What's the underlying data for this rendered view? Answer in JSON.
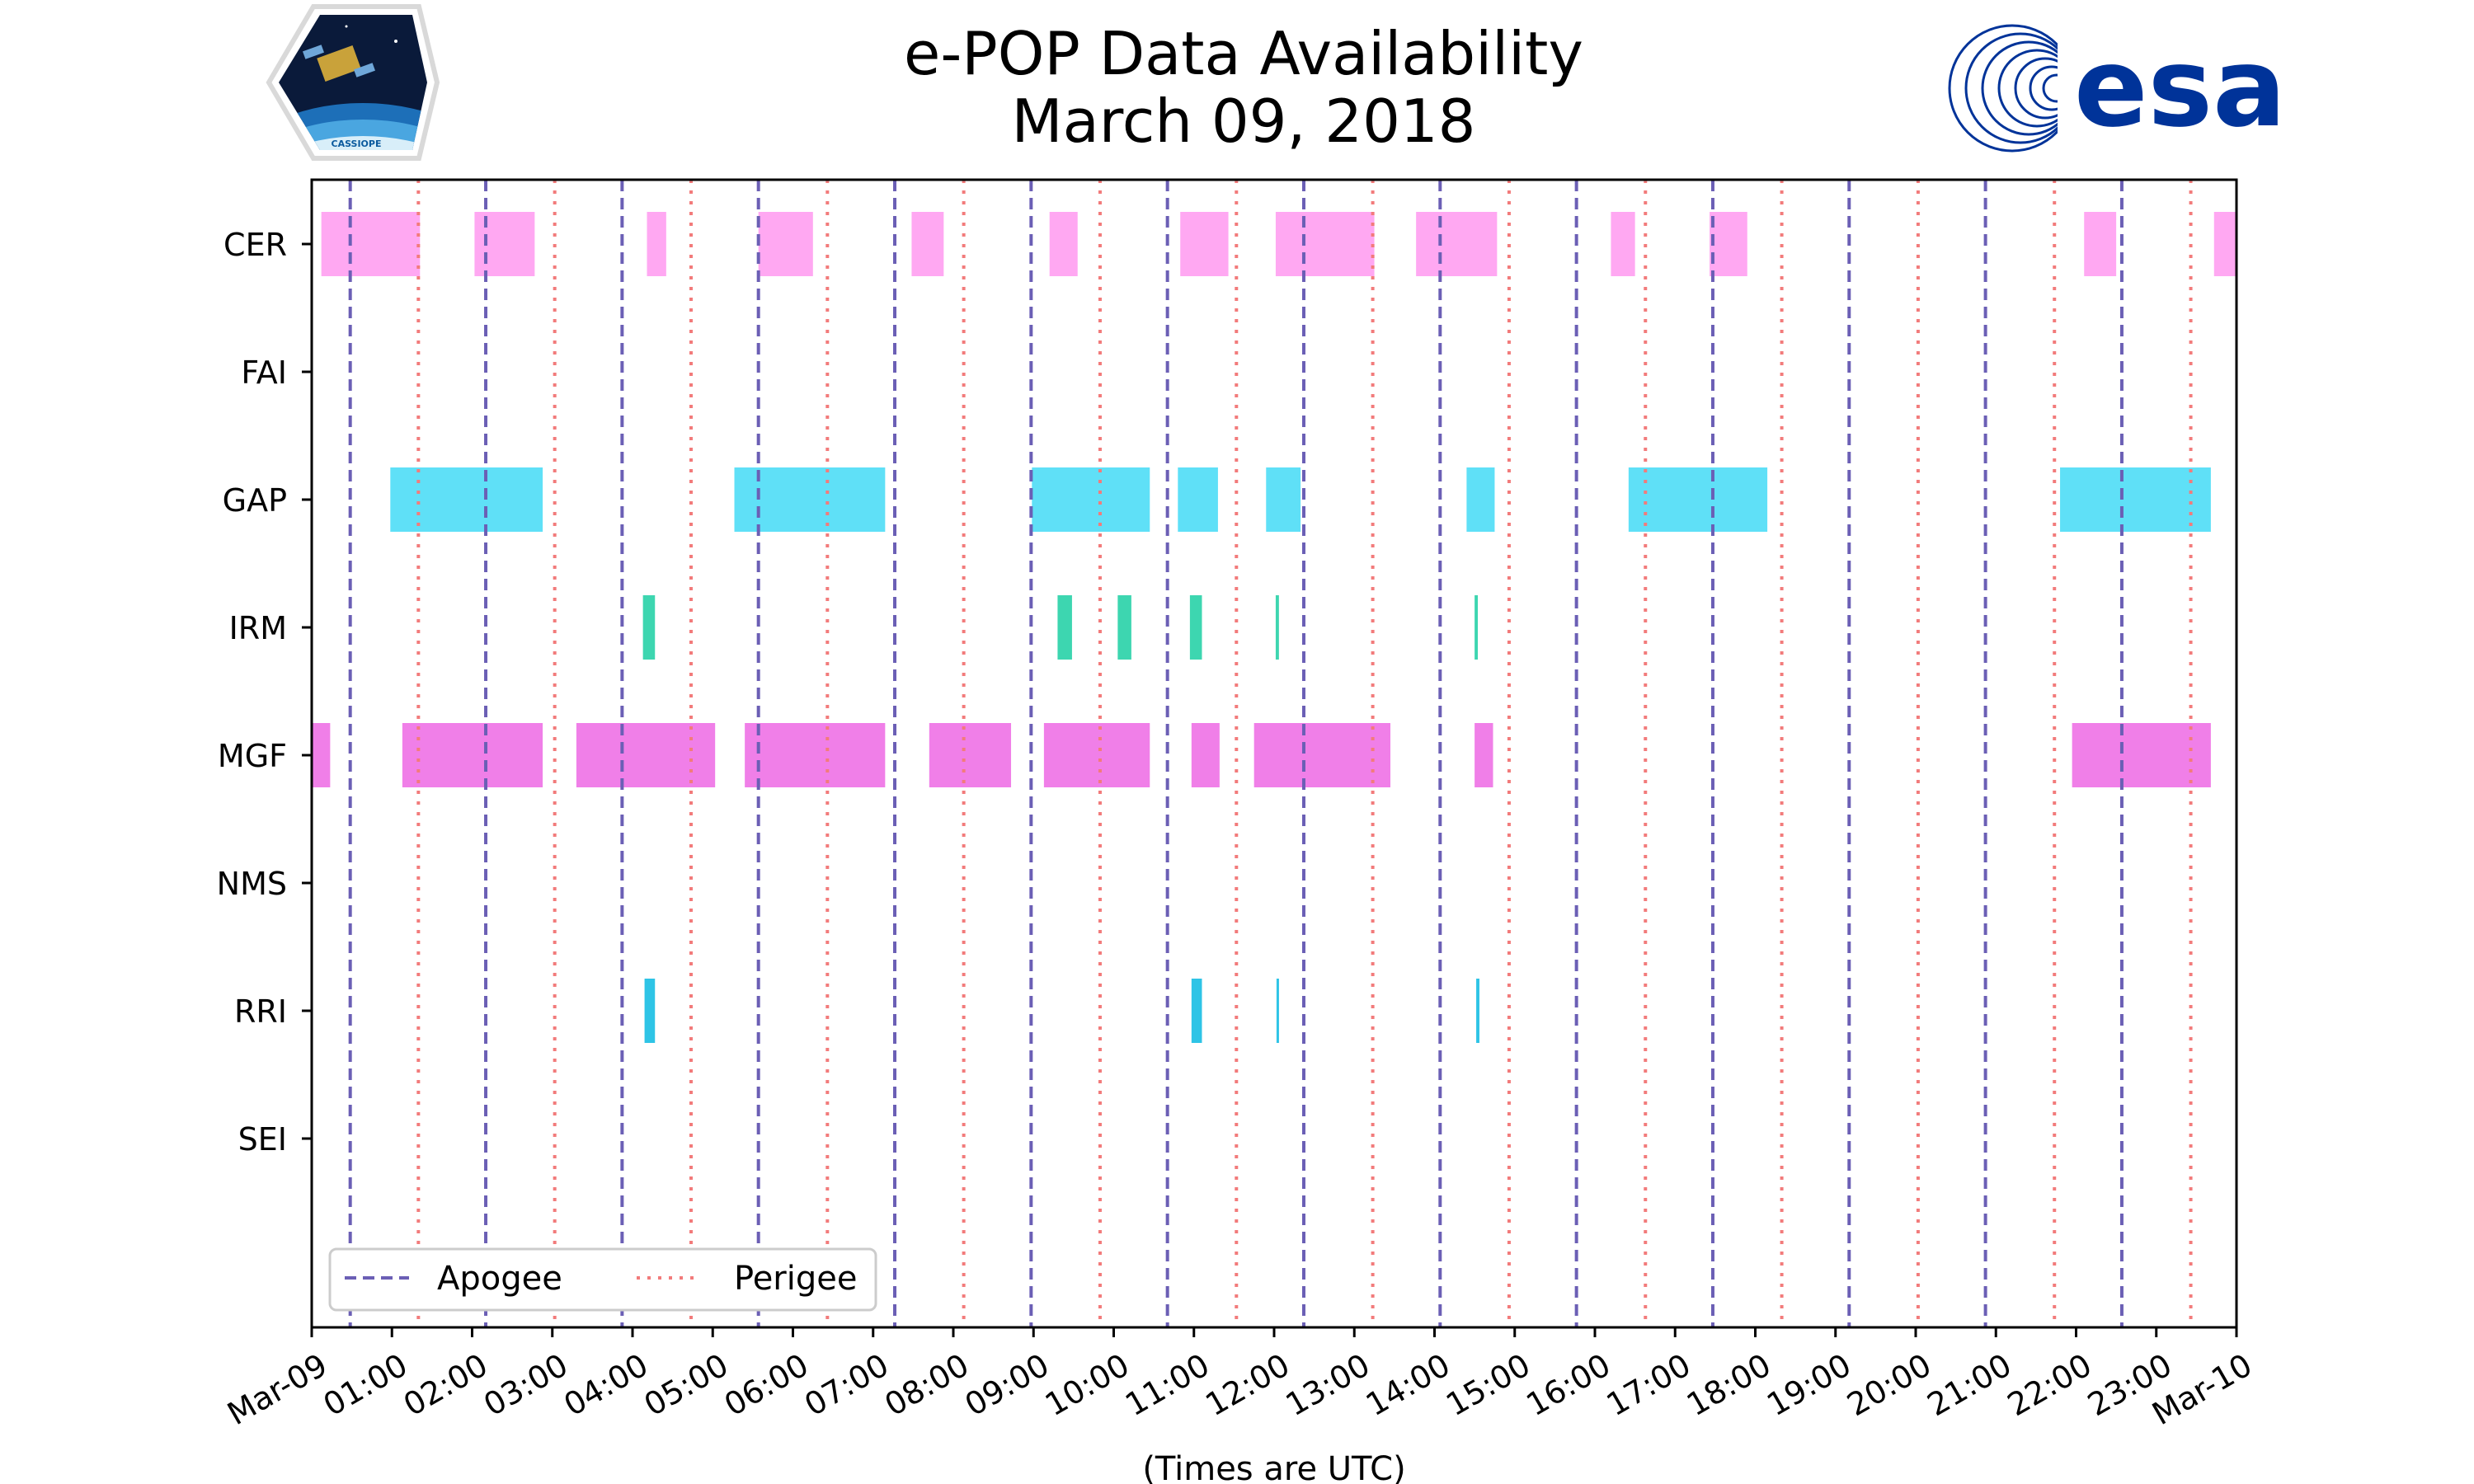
{
  "header": {
    "title_line1": "e-POP Data Availability",
    "title_line2": "March 09, 2018"
  },
  "logos": {
    "left_caption": "CASSIOPE",
    "right_text": "esa",
    "right_color": "#003399"
  },
  "chart_data": {
    "type": "timeline",
    "title": "e-POP Data Availability March 09, 2018",
    "xlabel": "(Times are UTC)",
    "ylabel": "",
    "x_unit": "hours UTC",
    "xlim": [
      0,
      24
    ],
    "x_tick_labels": [
      "Mar-09",
      "01:00",
      "02:00",
      "03:00",
      "04:00",
      "05:00",
      "06:00",
      "07:00",
      "08:00",
      "09:00",
      "10:00",
      "11:00",
      "12:00",
      "13:00",
      "14:00",
      "15:00",
      "16:00",
      "17:00",
      "18:00",
      "19:00",
      "20:00",
      "21:00",
      "22:00",
      "23:00",
      "Mar-10"
    ],
    "instruments": [
      "CER",
      "FAI",
      "GAP",
      "IRM",
      "MGF",
      "NMS",
      "RRI",
      "SEI"
    ],
    "series": [
      {
        "name": "CER",
        "color": "#ffa8f2",
        "intervals": [
          [
            0.12,
            1.35
          ],
          [
            2.03,
            2.78
          ],
          [
            4.18,
            4.42
          ],
          [
            5.57,
            6.25
          ],
          [
            7.48,
            7.88
          ],
          [
            9.2,
            9.55
          ],
          [
            10.83,
            11.43
          ],
          [
            12.02,
            13.25
          ],
          [
            13.77,
            14.78
          ],
          [
            16.2,
            16.5
          ],
          [
            17.43,
            17.9
          ],
          [
            22.1,
            22.5
          ],
          [
            23.72,
            24.0
          ]
        ]
      },
      {
        "name": "FAI",
        "color": "#cccccc",
        "intervals": []
      },
      {
        "name": "GAP",
        "color": "#5fe0f7",
        "intervals": [
          [
            0.98,
            2.88
          ],
          [
            5.27,
            7.15
          ],
          [
            8.98,
            10.45
          ],
          [
            10.8,
            11.3
          ],
          [
            11.9,
            12.33
          ],
          [
            14.4,
            14.75
          ],
          [
            16.42,
            18.15
          ],
          [
            21.8,
            23.68
          ]
        ]
      },
      {
        "name": "IRM",
        "color": "#3dd6b0",
        "intervals": [
          [
            4.13,
            4.28
          ],
          [
            9.3,
            9.48
          ],
          [
            10.05,
            10.22
          ],
          [
            10.95,
            11.1
          ],
          [
            12.02,
            12.06
          ],
          [
            14.5,
            14.54
          ]
        ]
      },
      {
        "name": "MGF",
        "color": "#f07fe8",
        "intervals": [
          [
            0.0,
            0.23
          ],
          [
            1.13,
            2.88
          ],
          [
            3.3,
            5.03
          ],
          [
            5.4,
            7.15
          ],
          [
            7.7,
            8.72
          ],
          [
            9.13,
            10.45
          ],
          [
            10.97,
            11.32
          ],
          [
            11.75,
            13.45
          ],
          [
            14.5,
            14.73
          ],
          [
            21.95,
            23.68
          ]
        ]
      },
      {
        "name": "NMS",
        "color": "#cccccc",
        "intervals": []
      },
      {
        "name": "RRI",
        "color": "#2ec4e6",
        "intervals": [
          [
            4.15,
            4.28
          ],
          [
            10.97,
            11.1
          ],
          [
            12.03,
            12.06
          ],
          [
            14.52,
            14.56
          ]
        ]
      },
      {
        "name": "SEI",
        "color": "#cccccc",
        "intervals": []
      }
    ],
    "apogee_times": [
      0.48,
      2.17,
      3.87,
      5.57,
      7.27,
      8.97,
      10.67,
      12.37,
      14.07,
      15.77,
      17.47,
      19.17,
      20.87,
      22.57
    ],
    "perigee_times": [
      1.33,
      3.03,
      4.73,
      6.43,
      8.13,
      9.83,
      11.53,
      13.23,
      14.93,
      16.63,
      18.33,
      20.03,
      21.73,
      23.43
    ],
    "apogee_color": "#6b5fb5",
    "perigee_color": "#f27b7b",
    "legend": {
      "position": "bottom-left",
      "entries": [
        {
          "label": "Apogee",
          "style": "dashed",
          "color": "#6b5fb5"
        },
        {
          "label": "Perigee",
          "style": "dotted",
          "color": "#f27b7b"
        }
      ]
    }
  }
}
